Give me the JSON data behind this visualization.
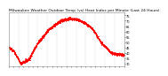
{
  "title": "Milwaukee Weather Outdoor Temp (vs) Heat Index per Minute (Last 24 Hours)",
  "line_color": "#ff0000",
  "line_style": "--",
  "line_width": 0.5,
  "marker": ".",
  "marker_size": 1.0,
  "bg_color": "#ffffff",
  "grid_color": "#aaaaaa",
  "ylim": [
    28,
    78
  ],
  "xlim": [
    0,
    1440
  ],
  "yticks": [
    30,
    35,
    40,
    45,
    50,
    55,
    60,
    65,
    70,
    75
  ],
  "xtick_count": 25,
  "title_fontsize": 3.2,
  "tick_fontsize": 2.5,
  "x_data_points": 1440,
  "ctrl_t": [
    0,
    60,
    150,
    250,
    350,
    500,
    650,
    750,
    850,
    950,
    1050,
    1150,
    1280,
    1440
  ],
  "ctrl_v": [
    45,
    42,
    30,
    34,
    48,
    62,
    70,
    72,
    71,
    68,
    62,
    50,
    40,
    38
  ]
}
